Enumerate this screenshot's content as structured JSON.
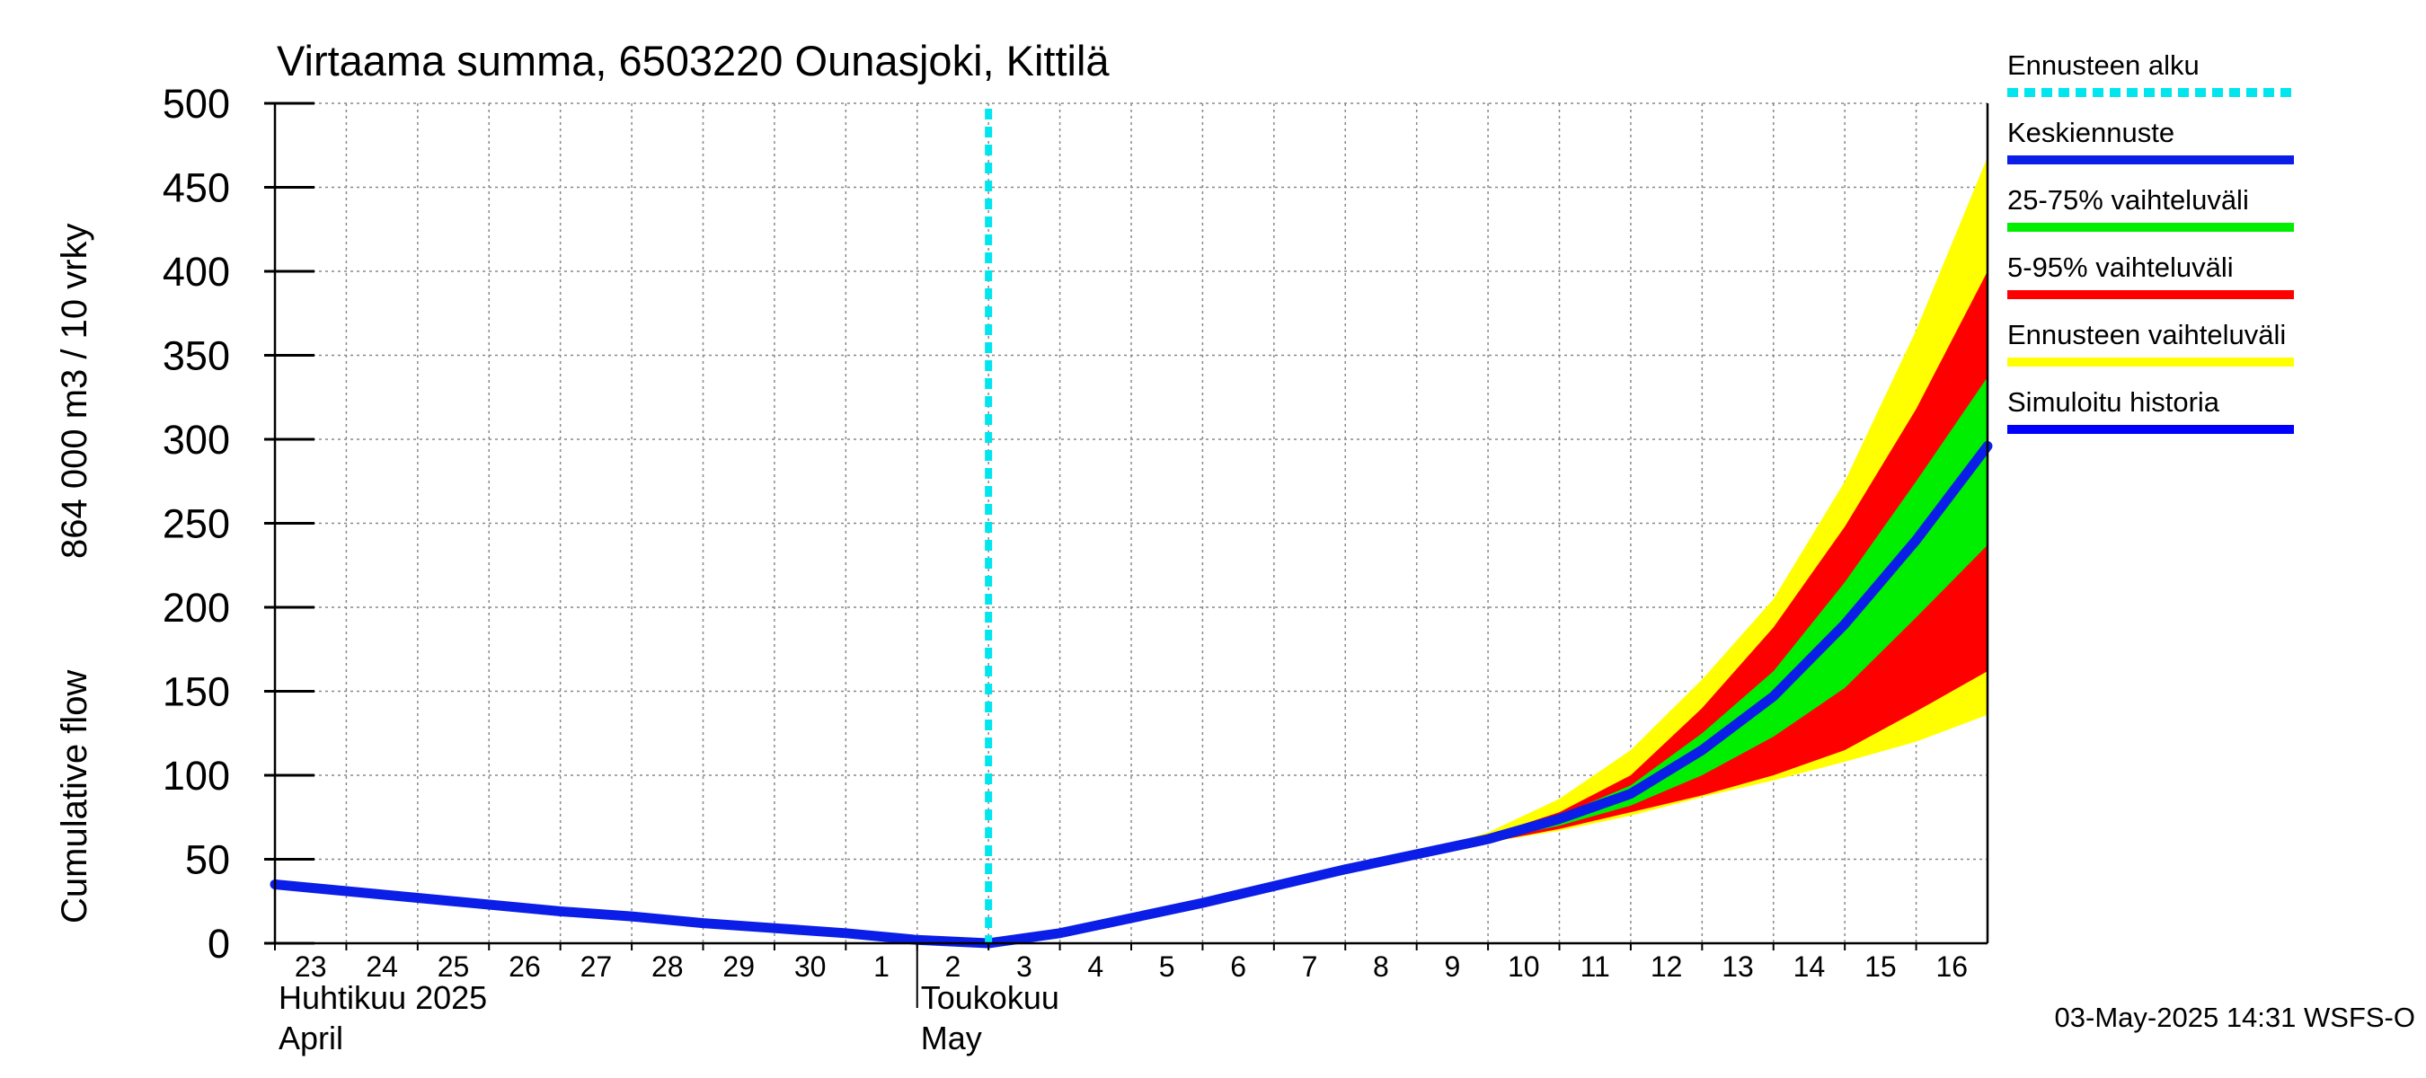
{
  "chart_data": {
    "type": "area",
    "title": "Virtaama summa, 6503220 Ounasjoki, Kittilä",
    "ylabel_lines": [
      "Cumulative flow",
      "864 000 m3 / 10 vrky"
    ],
    "ylim": [
      0,
      500
    ],
    "yticks": [
      0,
      50,
      100,
      150,
      200,
      250,
      300,
      350,
      400,
      450,
      500
    ],
    "x_labels": [
      "23",
      "24",
      "25",
      "26",
      "27",
      "28",
      "29",
      "30",
      "1",
      "2",
      "3",
      "4",
      "5",
      "6",
      "7",
      "8",
      "9",
      "10",
      "11",
      "12",
      "13",
      "14",
      "15",
      "16"
    ],
    "months": [
      {
        "line1": "Huhtikuu  2025",
        "line2": "April",
        "start_day": 0
      },
      {
        "line1": "Toukokuu",
        "line2": "May",
        "start_day": 9
      }
    ],
    "x_range_days": [
      0,
      24
    ],
    "forecast_start_day": 10,
    "history": {
      "name": "Simuloitu historia",
      "x": [
        0,
        1,
        2,
        3,
        4,
        5,
        6,
        7,
        8,
        9,
        10
      ],
      "y": [
        35,
        31,
        27,
        23,
        19,
        16,
        12,
        9,
        6,
        2,
        0
      ]
    },
    "mean_forecast": {
      "name": "Keskiennuste",
      "x": [
        10,
        11,
        12,
        13,
        14,
        15,
        16,
        17,
        18,
        19,
        20,
        21,
        22,
        23,
        24
      ],
      "y": [
        0,
        6,
        15,
        24,
        34,
        44,
        53,
        62,
        74,
        89,
        115,
        147,
        190,
        240,
        296
      ]
    },
    "band_25_75": {
      "name": "25-75% vaihteluväli",
      "x": [
        10,
        11,
        12,
        13,
        14,
        15,
        16,
        17,
        18,
        19,
        20,
        21,
        22,
        23,
        24
      ],
      "lower": [
        0,
        6,
        15,
        24,
        34,
        44,
        53,
        61,
        70,
        82,
        100,
        123,
        152,
        194,
        237
      ],
      "upper": [
        0,
        6,
        15,
        24,
        34,
        44,
        53,
        63,
        76,
        94,
        125,
        162,
        215,
        275,
        337
      ]
    },
    "band_5_95": {
      "name": "5-95% vaihteluväli",
      "x": [
        10,
        11,
        12,
        13,
        14,
        15,
        16,
        17,
        18,
        19,
        20,
        21,
        22,
        23,
        24
      ],
      "lower": [
        0,
        6,
        15,
        24,
        34,
        44,
        53,
        60,
        68,
        78,
        88,
        100,
        115,
        138,
        162
      ],
      "upper": [
        0,
        6,
        15,
        24,
        34,
        44,
        53,
        64,
        78,
        100,
        140,
        188,
        248,
        318,
        400
      ]
    },
    "band_full": {
      "name": "Ennusteen vaihteluväli",
      "x": [
        10,
        11,
        12,
        13,
        14,
        15,
        16,
        17,
        18,
        19,
        20,
        21,
        22,
        23,
        24
      ],
      "lower": [
        0,
        6,
        15,
        24,
        34,
        44,
        53,
        60,
        67,
        76,
        87,
        97,
        108,
        120,
        136
      ],
      "upper": [
        0,
        6,
        15,
        24,
        34,
        44,
        53,
        66,
        86,
        115,
        157,
        205,
        275,
        365,
        468
      ]
    },
    "legend": [
      {
        "label": "Ennusteen alku",
        "color": "#00e5ee",
        "style": "dotted"
      },
      {
        "label": "Keskiennuste",
        "color": "#0a1ee8",
        "style": "solid"
      },
      {
        "label": "25-75% vaihteluväli",
        "color": "#00ee00",
        "style": "solid"
      },
      {
        "label": "5-95% vaihteluväli",
        "color": "#ff0000",
        "style": "solid"
      },
      {
        "label": "Ennusteen vaihteluväli",
        "color": "#ffff00",
        "style": "solid"
      },
      {
        "label": "Simuloitu historia",
        "color": "#0000ff",
        "style": "solid"
      }
    ],
    "timestamp": "03-May-2025 14:31 WSFS-O"
  }
}
